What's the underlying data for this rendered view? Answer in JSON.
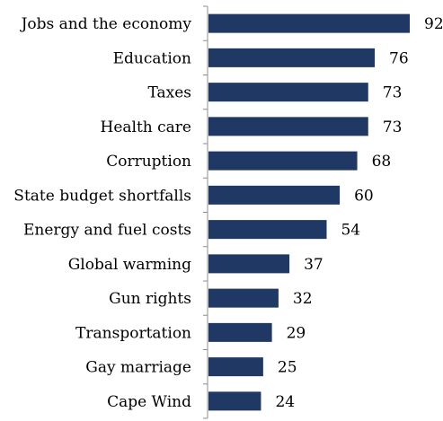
{
  "chart_data": {
    "type": "bar",
    "orientation": "horizontal",
    "categories": [
      "Jobs and the economy",
      "Education",
      "Taxes",
      "Health care",
      "Corruption",
      "State budget shortfalls",
      "Energy and fuel costs",
      "Global warming",
      "Gun rights",
      "Transportation",
      "Gay marriage",
      "Cape Wind"
    ],
    "values": [
      92,
      76,
      73,
      73,
      68,
      60,
      54,
      37,
      32,
      29,
      25,
      24
    ],
    "title": "",
    "xlabel": "",
    "ylabel": "",
    "xlim": [
      0,
      100
    ],
    "grid": false,
    "legend": "none",
    "data_labels": true,
    "bar_color": "#1f3864"
  }
}
